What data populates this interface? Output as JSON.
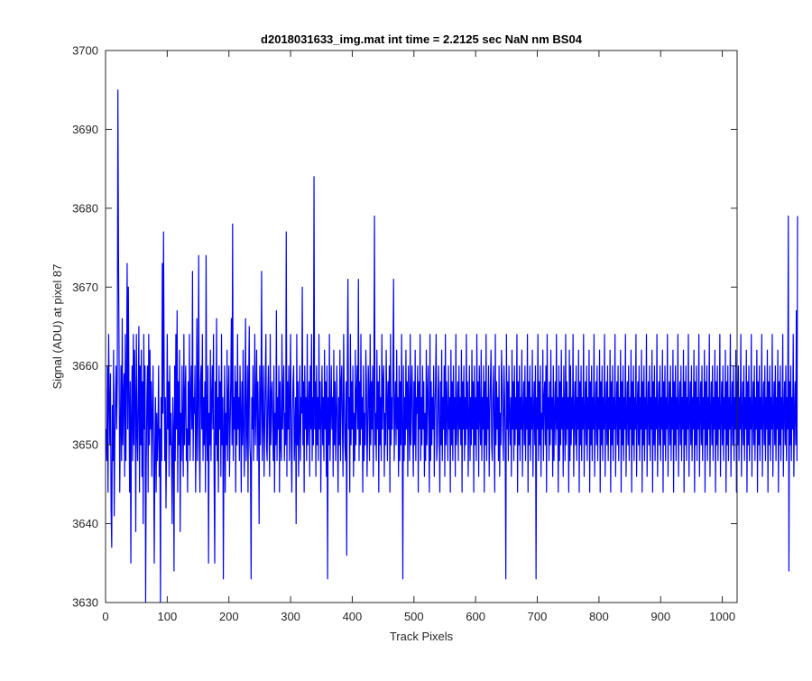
{
  "chart_data": {
    "type": "line",
    "title": "d2018031633_img.mat int time = 2.2125 sec  NaN nm BS04",
    "xlabel": "Track Pixels",
    "ylabel": "Signal (ADU) at pixel 87",
    "xlim": [
      0,
      1024
    ],
    "ylim": [
      3630,
      3700
    ],
    "xticks": [
      0,
      100,
      200,
      300,
      400,
      500,
      600,
      700,
      800,
      900,
      1000
    ],
    "yticks": [
      3630,
      3640,
      3650,
      3660,
      3670,
      3680,
      3690,
      3700
    ],
    "xtick_labels": [
      "0",
      "100",
      "200",
      "300",
      "400",
      "500",
      "600",
      "700",
      "800",
      "900",
      "1000"
    ],
    "ytick_labels": [
      "3630",
      "3640",
      "3650",
      "3660",
      "3670",
      "3680",
      "3690",
      "3700"
    ],
    "grid": false,
    "line_color": "#0000ff",
    "series": [
      {
        "x_start": 1,
        "x_step": 1,
        "values": [
          3652,
          3648,
          3660,
          3644,
          3664,
          3656,
          3650,
          3659,
          3642,
          3637,
          3655,
          3648,
          3662,
          3641,
          3650,
          3656,
          3660,
          3652,
          3658,
          3695,
          3674,
          3660,
          3644,
          3652,
          3660,
          3648,
          3666,
          3650,
          3656,
          3659,
          3646,
          3664,
          3648,
          3658,
          3673,
          3652,
          3670,
          3656,
          3644,
          3658,
          3635,
          3654,
          3660,
          3648,
          3664,
          3650,
          3662,
          3656,
          3639,
          3664,
          3652,
          3648,
          3656,
          3665,
          3644,
          3660,
          3650,
          3662,
          3646,
          3658,
          3640,
          3664,
          3652,
          3660,
          3630,
          3648,
          3656,
          3660,
          3644,
          3664,
          3650,
          3662,
          3652,
          3658,
          3646,
          3654,
          3660,
          3648,
          3635,
          3650,
          3656,
          3644,
          3654,
          3648,
          3652,
          3660,
          3646,
          3652,
          3630,
          3656,
          3648,
          3673,
          3654,
          3677,
          3660,
          3648,
          3656,
          3642,
          3650,
          3664,
          3652,
          3658,
          3646,
          3660,
          3650,
          3654,
          3648,
          3640,
          3656,
          3652,
          3634,
          3660,
          3648,
          3664,
          3652,
          3667,
          3644,
          3658,
          3650,
          3662,
          3639,
          3654,
          3648,
          3660,
          3652,
          3646,
          3664,
          3650,
          3656,
          3660,
          3648,
          3652,
          3644,
          3658,
          3650,
          3664,
          3648,
          3656,
          3660,
          3652,
          3672,
          3648,
          3656,
          3654,
          3660,
          3644,
          3652,
          3666,
          3648,
          3656,
          3674,
          3650,
          3644,
          3658,
          3660,
          3652,
          3664,
          3648,
          3656,
          3650,
          3658,
          3644,
          3674,
          3652,
          3648,
          3660,
          3635,
          3654,
          3650,
          3662,
          3648,
          3656,
          3660,
          3652,
          3664,
          3646,
          3635,
          3658,
          3650,
          3666,
          3648,
          3656,
          3644,
          3660,
          3652,
          3658,
          3646,
          3664,
          3650,
          3656,
          3633,
          3652,
          3660,
          3644,
          3654,
          3650,
          3662,
          3648,
          3656,
          3660,
          3646,
          3652,
          3658,
          3666,
          3650,
          3678,
          3648,
          3656,
          3652,
          3660,
          3644,
          3658,
          3650,
          3664,
          3652,
          3656,
          3648,
          3660,
          3654,
          3644,
          3658,
          3650,
          3662,
          3652,
          3646,
          3656,
          3666,
          3648,
          3652,
          3660,
          3644,
          3658,
          3665,
          3650,
          3648,
          3633,
          3656,
          3652,
          3660,
          3648,
          3654,
          3664,
          3650,
          3656,
          3662,
          3648,
          3658,
          3652,
          3640,
          3660,
          3650,
          3656,
          3672,
          3648,
          3654,
          3660,
          3646,
          3652,
          3658,
          3664,
          3650,
          3648,
          3656,
          3660,
          3652,
          3646,
          3664,
          3650,
          3656,
          3658,
          3652,
          3648,
          3660,
          3644,
          3654,
          3650,
          3667,
          3648,
          3656,
          3652,
          3660,
          3644,
          3658,
          3650,
          3648,
          3664,
          3652,
          3656,
          3660,
          3648,
          3654,
          3650,
          3677,
          3646,
          3658,
          3652,
          3660,
          3648,
          3656,
          3664,
          3650,
          3644,
          3654,
          3658,
          3660,
          3648,
          3652,
          3656,
          3640,
          3664,
          3650,
          3658,
          3646,
          3652,
          3660,
          3648,
          3656,
          3654,
          3670,
          3650,
          3658,
          3644,
          3660,
          3652,
          3656,
          3648,
          3664,
          3650,
          3654,
          3658,
          3646,
          3660,
          3652,
          3664,
          3648,
          3656,
          3650,
          3684,
          3652,
          3658,
          3646,
          3660,
          3650,
          3656,
          3648,
          3664,
          3652,
          3658,
          3644,
          3654,
          3660,
          3650,
          3656,
          3648,
          3662,
          3652,
          3658,
          3646,
          3660,
          3633,
          3656,
          3650,
          3664,
          3648,
          3654,
          3660,
          3652,
          3656,
          3646,
          3662,
          3650,
          3658,
          3648,
          3654,
          3660,
          3652,
          3644,
          3656,
          3650,
          3662,
          3648,
          3658,
          3660,
          3652,
          3646,
          3664,
          3656,
          3650,
          3648,
          3658,
          3636,
          3660,
          3671,
          3652,
          3656,
          3644,
          3664,
          3650,
          3658,
          3652,
          3660,
          3646,
          3654,
          3648,
          3662,
          3650,
          3656,
          3660,
          3652,
          3671,
          3648,
          3658,
          3650,
          3664,
          3652,
          3656,
          3644,
          3660,
          3648,
          3654,
          3650,
          3662,
          3658,
          3646,
          3652,
          3660,
          3656,
          3648,
          3664,
          3650,
          3658,
          3652,
          3660,
          3646,
          3656,
          3679,
          3650,
          3654,
          3648,
          3662,
          3652,
          3658,
          3644,
          3660,
          3650,
          3656,
          3648,
          3664,
          3652,
          3658,
          3660,
          3646,
          3654,
          3650,
          3662,
          3656,
          3648,
          3658,
          3652,
          3660,
          3644,
          3664,
          3650,
          3656,
          3652,
          3660,
          3671,
          3648,
          3654,
          3658,
          3650,
          3662,
          3652,
          3656,
          3646,
          3660,
          3648,
          3658,
          3650,
          3664,
          3652,
          3633,
          3660,
          3648,
          3656,
          3650,
          3662,
          3652,
          3658,
          3646,
          3660,
          3654,
          3648,
          3664,
          3650,
          3656,
          3660,
          3652,
          3646,
          3658,
          3650,
          3662,
          3648,
          3656,
          3654,
          3660,
          3644,
          3658,
          3652,
          3664,
          3648,
          3656,
          3650,
          3660,
          3652,
          3658,
          3646,
          3654,
          3648,
          3662,
          3650,
          3656,
          3660,
          3652,
          3644,
          3664,
          3648,
          3658,
          3650,
          3656,
          3652,
          3660,
          3646,
          3654,
          3658,
          3664,
          3648,
          3650,
          3656,
          3660,
          3652,
          3644,
          3658,
          3650,
          3662,
          3648,
          3656,
          3652,
          3660,
          3646,
          3664,
          3650,
          3658,
          3654,
          3648,
          3660,
          3652,
          3656,
          3644,
          3662,
          3650,
          3658,
          3648,
          3660,
          3652,
          3656,
          3646,
          3664,
          3650,
          3654,
          3658,
          3648,
          3660,
          3652,
          3656,
          3650,
          3662,
          3644,
          3658,
          3652,
          3660,
          3648,
          3656,
          3650,
          3664,
          3652,
          3658,
          3646,
          3654,
          3660,
          3648,
          3656,
          3650,
          3662,
          3652,
          3658,
          3644,
          3660,
          3650,
          3656,
          3648,
          3664,
          3652,
          3658,
          3646,
          3660,
          3654,
          3650,
          3662,
          3648,
          3656,
          3652,
          3660,
          3644,
          3658,
          3650,
          3664,
          3648,
          3656,
          3652,
          3660,
          3646,
          3654,
          3658,
          3662,
          3650,
          3648,
          3656,
          3660,
          3652,
          3644,
          3664,
          3650,
          3658,
          3652,
          3656,
          3648,
          3660,
          3646,
          3654,
          3650,
          3662,
          3658,
          3652,
          3648,
          3660,
          3656,
          3650,
          3633,
          3664,
          3652,
          3658,
          3648,
          3660,
          3654,
          3650,
          3656,
          3646,
          3662,
          3652,
          3658,
          3648,
          3660,
          3650,
          3656,
          3652,
          3664,
          3644,
          3658,
          3650,
          3660,
          3648,
          3656,
          3652,
          3662,
          3646,
          3654,
          3658,
          3650,
          3660,
          3648,
          3656,
          3652,
          3664,
          3644,
          3658,
          3650,
          3660,
          3648,
          3656,
          3652,
          3662,
          3646,
          3654,
          3658,
          3650,
          3660,
          3633,
          3656,
          3652,
          3664,
          3648,
          3658,
          3650,
          3660,
          3646,
          3654,
          3652,
          3662,
          3648,
          3656,
          3658,
          3650,
          3660,
          3644,
          3664,
          3652,
          3656,
          3648,
          3658,
          3650,
          3662,
          3652,
          3656,
          3646,
          3660,
          3648,
          3654,
          3658,
          3650,
          3664,
          3652,
          3656,
          3644,
          3660,
          3648,
          3658,
          3650,
          3662,
          3652,
          3656,
          3646,
          3660,
          3654,
          3648,
          3664,
          3650,
          3658,
          3652,
          3656,
          3644,
          3662,
          3648,
          3660,
          3650,
          3656,
          3652,
          3664,
          3646,
          3654,
          3658,
          3650,
          3660,
          3648,
          3656,
          3652,
          3662,
          3644,
          3658,
          3650,
          3660,
          3648,
          3656,
          3652,
          3664,
          3646,
          3654,
          3658,
          3650,
          3660,
          3648,
          3656,
          3652,
          3662,
          3644,
          3658,
          3650,
          3660,
          3648,
          3656,
          3652,
          3664,
          3646,
          3654,
          3658,
          3650,
          3660,
          3648,
          3656,
          3652,
          3662,
          3644,
          3658,
          3650,
          3660,
          3648,
          3656,
          3652,
          3664,
          3646,
          3654,
          3658,
          3650,
          3660,
          3648,
          3656,
          3652,
          3662,
          3644,
          3658,
          3650,
          3660,
          3648,
          3656,
          3652,
          3664,
          3646,
          3654,
          3658,
          3650,
          3660,
          3648,
          3656,
          3652,
          3662,
          3644,
          3658,
          3650,
          3660,
          3648,
          3656,
          3652,
          3664,
          3646,
          3654,
          3658,
          3650,
          3660,
          3648,
          3656,
          3652,
          3662,
          3644,
          3658,
          3650,
          3660,
          3648,
          3656,
          3652,
          3664,
          3646,
          3654,
          3658,
          3650,
          3660,
          3648,
          3656,
          3652,
          3662,
          3644,
          3658,
          3650,
          3660,
          3648,
          3656,
          3652,
          3664,
          3646,
          3654,
          3658,
          3650,
          3660,
          3648,
          3656,
          3652,
          3662,
          3644,
          3658,
          3650,
          3660,
          3648,
          3656,
          3652,
          3664,
          3646,
          3654,
          3658,
          3650,
          3660,
          3648,
          3656,
          3652,
          3662,
          3644,
          3658,
          3650,
          3660,
          3648,
          3656,
          3652,
          3664,
          3646,
          3654,
          3658,
          3650,
          3660,
          3648,
          3656,
          3652,
          3662,
          3644,
          3658,
          3650,
          3660,
          3648,
          3656,
          3652,
          3664,
          3646,
          3654,
          3658,
          3650,
          3660,
          3648,
          3656,
          3652,
          3662,
          3644,
          3658,
          3650,
          3660,
          3648,
          3656,
          3652,
          3664,
          3646,
          3654,
          3658,
          3650,
          3660,
          3648,
          3656,
          3652,
          3662,
          3644,
          3658,
          3650,
          3660,
          3648,
          3656,
          3652,
          3664,
          3646,
          3654,
          3658,
          3650,
          3660,
          3648,
          3656,
          3652,
          3662,
          3644,
          3658,
          3650,
          3660,
          3648,
          3656,
          3652,
          3664,
          3646,
          3654,
          3658,
          3650,
          3660,
          3648,
          3656,
          3652,
          3662,
          3644,
          3658,
          3650,
          3660,
          3648,
          3656,
          3652,
          3664,
          3646,
          3654,
          3658,
          3650,
          3660,
          3648,
          3656,
          3652,
          3662,
          3644,
          3658,
          3650,
          3660,
          3648,
          3656,
          3652,
          3664,
          3646,
          3654,
          3658,
          3650,
          3660,
          3648,
          3656,
          3652,
          3662,
          3644,
          3658,
          3650,
          3660,
          3648,
          3656,
          3652,
          3664,
          3646,
          3654,
          3658,
          3650,
          3660,
          3648,
          3656,
          3652,
          3662,
          3644,
          3658,
          3650,
          3660,
          3648,
          3656,
          3652,
          3664,
          3646,
          3654,
          3658,
          3650,
          3660,
          3648,
          3656,
          3652,
          3662,
          3644,
          3658,
          3650,
          3660,
          3648,
          3656,
          3652,
          3664,
          3646,
          3654,
          3658,
          3650,
          3660,
          3648,
          3656,
          3652,
          3662,
          3644,
          3658,
          3650,
          3660,
          3648,
          3656,
          3652,
          3664,
          3646,
          3654,
          3658,
          3650,
          3660,
          3648,
          3656,
          3652,
          3662,
          3644,
          3658,
          3650,
          3660,
          3648,
          3656,
          3652,
          3664,
          3646,
          3654,
          3658,
          3650,
          3660,
          3648,
          3656,
          3652,
          3679,
          3634,
          3658,
          3650,
          3660,
          3648,
          3656,
          3652,
          3664,
          3646,
          3654,
          3658,
          3650,
          3667,
          3648,
          3679
        ]
      }
    ]
  }
}
